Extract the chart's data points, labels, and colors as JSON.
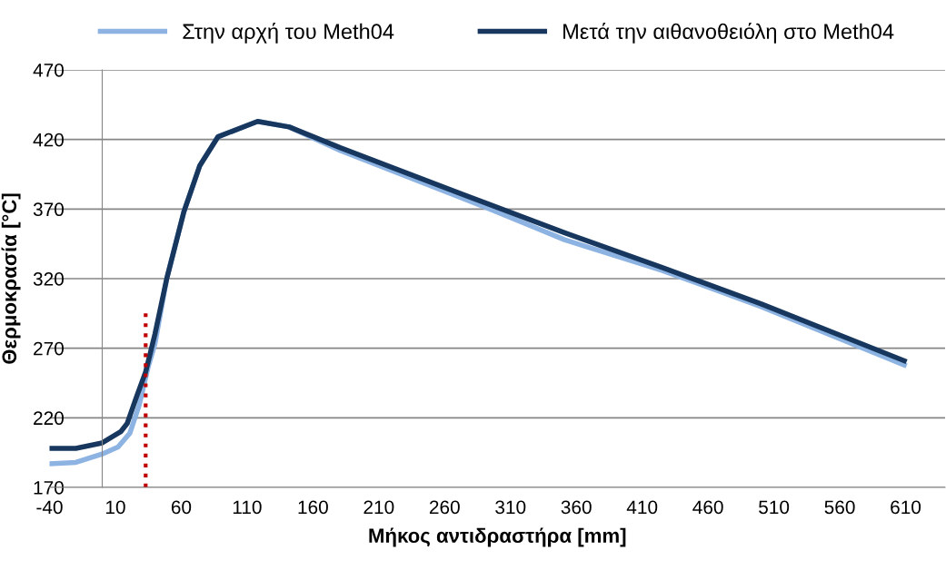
{
  "chart_data": {
    "type": "line",
    "xlabel": "Μήκος αντιδραστήρα [mm]",
    "ylabel": "Θερμοκρασία [°C]",
    "xlim": [
      -40,
      640
    ],
    "xticks": [
      -40,
      10,
      60,
      110,
      160,
      210,
      260,
      310,
      360,
      410,
      460,
      510,
      560,
      610
    ],
    "ylim": [
      170,
      470
    ],
    "yticks": [
      170,
      220,
      270,
      320,
      370,
      420,
      470
    ],
    "grid": "y",
    "legend": "top",
    "marker": "none",
    "series": [
      {
        "name": "Στην αρχή του Meth04",
        "color": "#8db3e2",
        "x": [
          -40,
          -20,
          0,
          12,
          21,
          28,
          35,
          40,
          49,
          62,
          74,
          88,
          118,
          142,
          181,
          292,
          351,
          425,
          500,
          609
        ],
        "values": [
          187,
          188,
          194,
          199,
          209,
          229,
          257,
          273,
          320,
          368,
          401,
          422,
          433,
          429,
          412,
          371,
          348,
          326,
          300,
          258
        ]
      },
      {
        "name": "Μετά την αιθανοθειόλη στο Meth04",
        "color": "#17375e",
        "x": [
          -40,
          -20,
          0,
          14,
          19,
          26,
          33,
          40,
          49,
          62,
          74,
          88,
          118,
          142,
          181,
          292,
          351,
          425,
          500,
          609
        ],
        "values": [
          198,
          198,
          202,
          210,
          216,
          235,
          253,
          280,
          320,
          368,
          401,
          422,
          433,
          429,
          414,
          374,
          353,
          328,
          302,
          261
        ]
      },
      {
        "color": "#c00000",
        "line_style": "dotted",
        "x": [
          33,
          33
        ],
        "values": [
          170,
          295
        ]
      }
    ]
  }
}
